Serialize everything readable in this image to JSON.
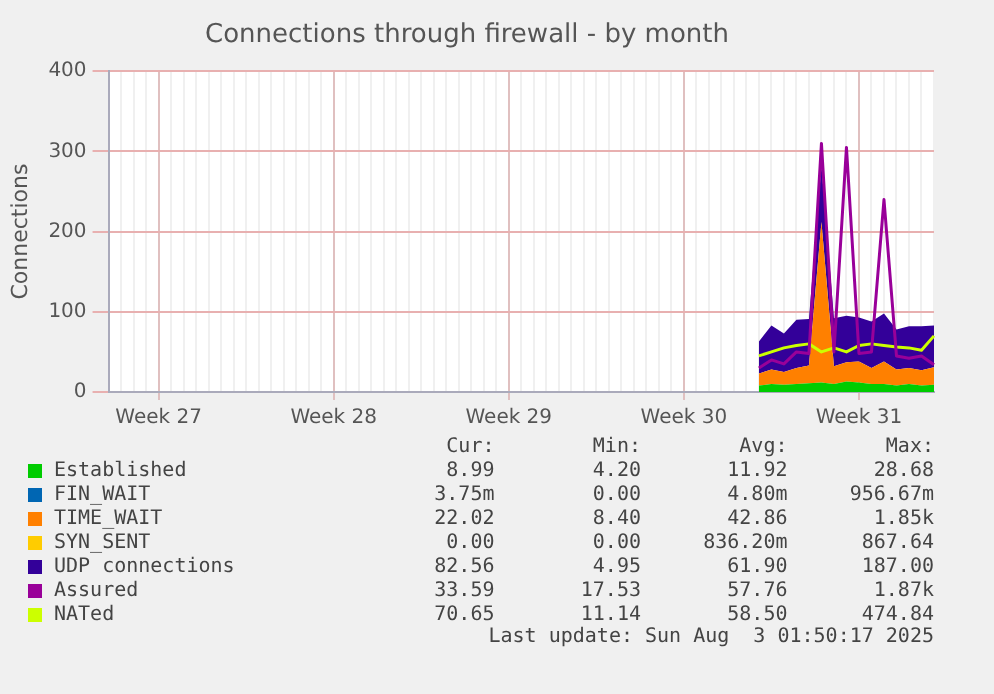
{
  "chart_data": {
    "type": "area",
    "title": "Connections through firewall - by month",
    "ylabel": "Connections",
    "stacked": true,
    "grid": true,
    "legend": "bottom",
    "marker": "none",
    "categories": [
      null,
      null,
      null,
      null,
      "Week 27",
      null,
      null,
      null,
      null,
      null,
      null,
      null,
      null,
      null,
      null,
      null,
      null,
      null,
      "Week 28",
      null,
      null,
      null,
      null,
      null,
      null,
      null,
      null,
      null,
      null,
      null,
      null,
      null,
      "Week 29",
      null,
      null,
      null,
      null,
      null,
      null,
      null,
      null,
      null,
      null,
      null,
      null,
      null,
      "Week 30",
      null,
      null,
      null,
      null,
      null,
      null,
      null,
      null,
      null,
      null,
      null,
      null,
      null,
      "Week 31",
      null,
      null,
      null,
      null,
      null,
      null
    ],
    "ylim": [
      0,
      400
    ],
    "yticks": [
      0,
      100,
      200,
      300,
      400
    ],
    "series": [
      {
        "name": "Established",
        "color": "#00cc00",
        "values": [
          null,
          null,
          null,
          null,
          null,
          null,
          null,
          null,
          null,
          null,
          null,
          null,
          null,
          null,
          null,
          null,
          null,
          null,
          null,
          null,
          null,
          null,
          null,
          null,
          null,
          null,
          null,
          null,
          null,
          null,
          null,
          null,
          null,
          null,
          null,
          null,
          null,
          null,
          null,
          null,
          null,
          null,
          null,
          null,
          null,
          null,
          null,
          null,
          null,
          null,
          null,
          null,
          8,
          10,
          9,
          10,
          11,
          12,
          10,
          13,
          12,
          10,
          10,
          8,
          10,
          8,
          9
        ]
      },
      {
        "name": "FIN_WAIT",
        "color": "#0066b3",
        "values": [
          null,
          null,
          null,
          null,
          null,
          null,
          null,
          null,
          null,
          null,
          null,
          null,
          null,
          null,
          null,
          null,
          null,
          null,
          null,
          null,
          null,
          null,
          null,
          null,
          null,
          null,
          null,
          null,
          null,
          null,
          null,
          null,
          null,
          null,
          null,
          null,
          null,
          null,
          null,
          null,
          null,
          null,
          null,
          null,
          null,
          null,
          null,
          null,
          null,
          null,
          null,
          null,
          null,
          null,
          null,
          null,
          null,
          null,
          null,
          null,
          null,
          null,
          null,
          null,
          null,
          null,
          null
        ]
      },
      {
        "name": "TIME_WAIT",
        "color": "#ff8000",
        "values": [
          null,
          null,
          null,
          null,
          null,
          null,
          null,
          null,
          null,
          null,
          null,
          null,
          null,
          null,
          null,
          null,
          null,
          null,
          null,
          null,
          null,
          null,
          null,
          null,
          null,
          null,
          null,
          null,
          null,
          null,
          null,
          null,
          null,
          null,
          null,
          null,
          null,
          null,
          null,
          null,
          null,
          null,
          null,
          null,
          null,
          null,
          null,
          null,
          null,
          null,
          null,
          null,
          15,
          18,
          16,
          20,
          22,
          200,
          22,
          24,
          26,
          20,
          28,
          20,
          20,
          19,
          22
        ]
      },
      {
        "name": "SYN_SENT",
        "color": "#ffcc00",
        "values": [
          null,
          null,
          null,
          null,
          null,
          null,
          null,
          null,
          null,
          null,
          null,
          null,
          null,
          null,
          null,
          null,
          null,
          null,
          null,
          null,
          null,
          null,
          null,
          null,
          null,
          null,
          null,
          null,
          null,
          null,
          null,
          null,
          null,
          null,
          null,
          null,
          null,
          null,
          null,
          null,
          null,
          null,
          null,
          null,
          null,
          null,
          null,
          null,
          null,
          null,
          null,
          null,
          null,
          null,
          null,
          null,
          null,
          null,
          null,
          null,
          null,
          null,
          null,
          null,
          null,
          null,
          null
        ]
      },
      {
        "name": "UDP connections",
        "color": "#330099",
        "values": [
          null,
          null,
          null,
          null,
          null,
          null,
          null,
          null,
          null,
          null,
          null,
          null,
          null,
          null,
          null,
          null,
          null,
          null,
          null,
          null,
          null,
          null,
          null,
          null,
          null,
          null,
          null,
          null,
          null,
          null,
          null,
          null,
          null,
          null,
          null,
          null,
          null,
          null,
          null,
          null,
          null,
          null,
          null,
          null,
          null,
          null,
          null,
          null,
          null,
          null,
          null,
          null,
          40,
          55,
          48,
          60,
          58,
          70,
          60,
          58,
          55,
          58,
          60,
          50,
          52,
          55,
          52
        ]
      },
      {
        "name": "Assured",
        "type": "line",
        "color": "#990099",
        "values": [
          null,
          null,
          null,
          null,
          null,
          null,
          null,
          null,
          null,
          null,
          null,
          null,
          null,
          null,
          null,
          null,
          null,
          null,
          null,
          null,
          null,
          null,
          null,
          null,
          null,
          null,
          null,
          null,
          null,
          null,
          null,
          null,
          null,
          null,
          null,
          null,
          null,
          null,
          null,
          null,
          null,
          null,
          null,
          null,
          null,
          null,
          null,
          null,
          null,
          null,
          null,
          null,
          30,
          40,
          35,
          50,
          48,
          310,
          50,
          305,
          48,
          50,
          240,
          45,
          42,
          45,
          34
        ]
      },
      {
        "name": "NATed",
        "type": "line",
        "color": "#ccff00",
        "values": [
          null,
          null,
          null,
          null,
          null,
          null,
          null,
          null,
          null,
          null,
          null,
          null,
          null,
          null,
          null,
          null,
          null,
          null,
          null,
          null,
          null,
          null,
          null,
          null,
          null,
          null,
          null,
          null,
          null,
          null,
          null,
          null,
          null,
          null,
          null,
          null,
          null,
          null,
          null,
          null,
          null,
          null,
          null,
          null,
          null,
          null,
          null,
          null,
          null,
          null,
          null,
          null,
          45,
          50,
          55,
          58,
          60,
          50,
          55,
          50,
          58,
          60,
          58,
          56,
          55,
          52,
          70
        ]
      }
    ],
    "annotations": [
      "Cur:",
      "Min:",
      "Avg:",
      "Max:",
      "8.99",
      "4.20",
      "11.92",
      "28.68",
      "3.75m",
      "0.00",
      "4.80m",
      "956.67m",
      "22.02",
      "8.40",
      "42.86",
      "1.85k",
      "0.00",
      "0.00",
      "836.20m",
      "867.64",
      "82.56",
      "4.95",
      "61.90",
      "187.00",
      "33.59",
      "17.53",
      "57.76",
      "1.87k",
      "70.65",
      "11.14",
      "58.50",
      "474.84",
      "Last update: Sun Aug  3 01:50:17 2025"
    ]
  }
}
